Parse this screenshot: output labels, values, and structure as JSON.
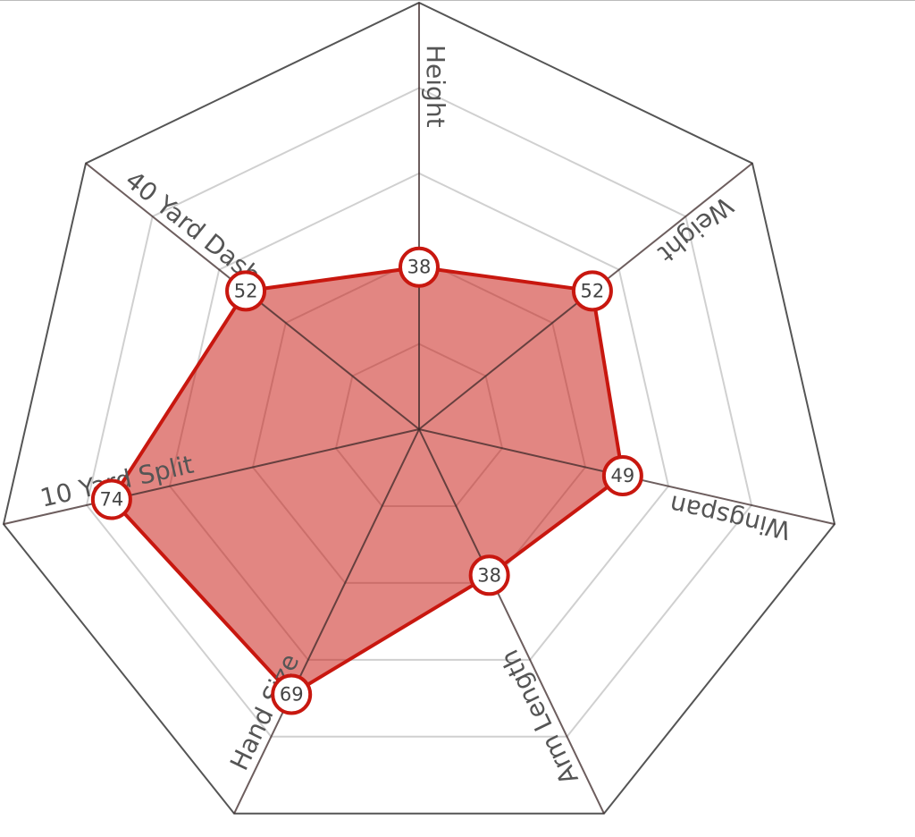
{
  "chart_data": {
    "type": "radar",
    "categories": [
      "Height",
      "Weight",
      "Wingspan",
      "Arm Length",
      "Hand Size",
      "10 Yard Split",
      "40 Yard Dash"
    ],
    "values": [
      38,
      52,
      49,
      38,
      69,
      74,
      52
    ],
    "color": "#c8170f",
    "ylim": [
      0,
      100
    ],
    "yticks": [
      20,
      40,
      60,
      80,
      100
    ],
    "grid": true
  }
}
